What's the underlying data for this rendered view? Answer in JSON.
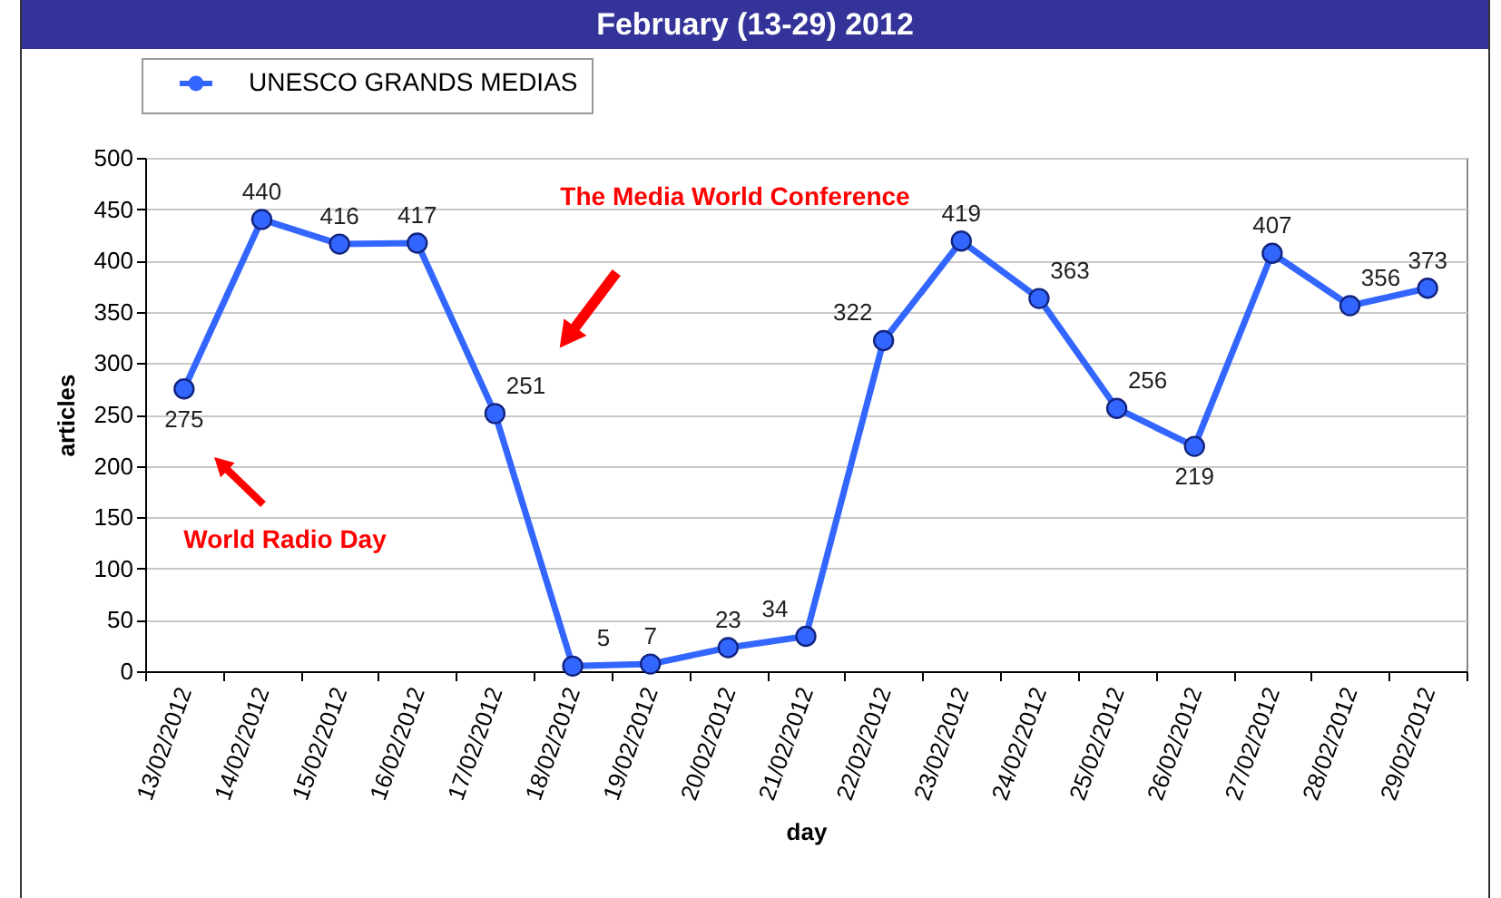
{
  "chart_data": {
    "type": "line",
    "title": "February (13-29) 2012",
    "xlabel": "day",
    "ylabel": "articles",
    "categories": [
      "13/02/2012",
      "14/02/2012",
      "15/02/2012",
      "16/02/2012",
      "17/02/2012",
      "18/02/2012",
      "19/02/2012",
      "20/02/2012",
      "21/02/2012",
      "22/02/2012",
      "23/02/2012",
      "24/02/2012",
      "25/02/2012",
      "26/02/2012",
      "27/02/2012",
      "28/02/2012",
      "29/02/2012"
    ],
    "series": [
      {
        "name": "UNESCO GRANDS MEDIAS",
        "color": "#3366ff",
        "values": [
          275,
          440,
          416,
          417,
          251,
          5,
          7,
          23,
          34,
          322,
          419,
          363,
          256,
          219,
          407,
          356,
          373
        ]
      }
    ],
    "ylim": [
      0,
      500
    ],
    "yticks": [
      0,
      50,
      100,
      150,
      200,
      250,
      300,
      350,
      400,
      450,
      500
    ],
    "grid": "y",
    "legend": "top left",
    "marker": "circle",
    "line_style": "solid",
    "data_labels": true,
    "annotations": [
      "World Radio Day",
      "The Media World Conference"
    ]
  }
}
